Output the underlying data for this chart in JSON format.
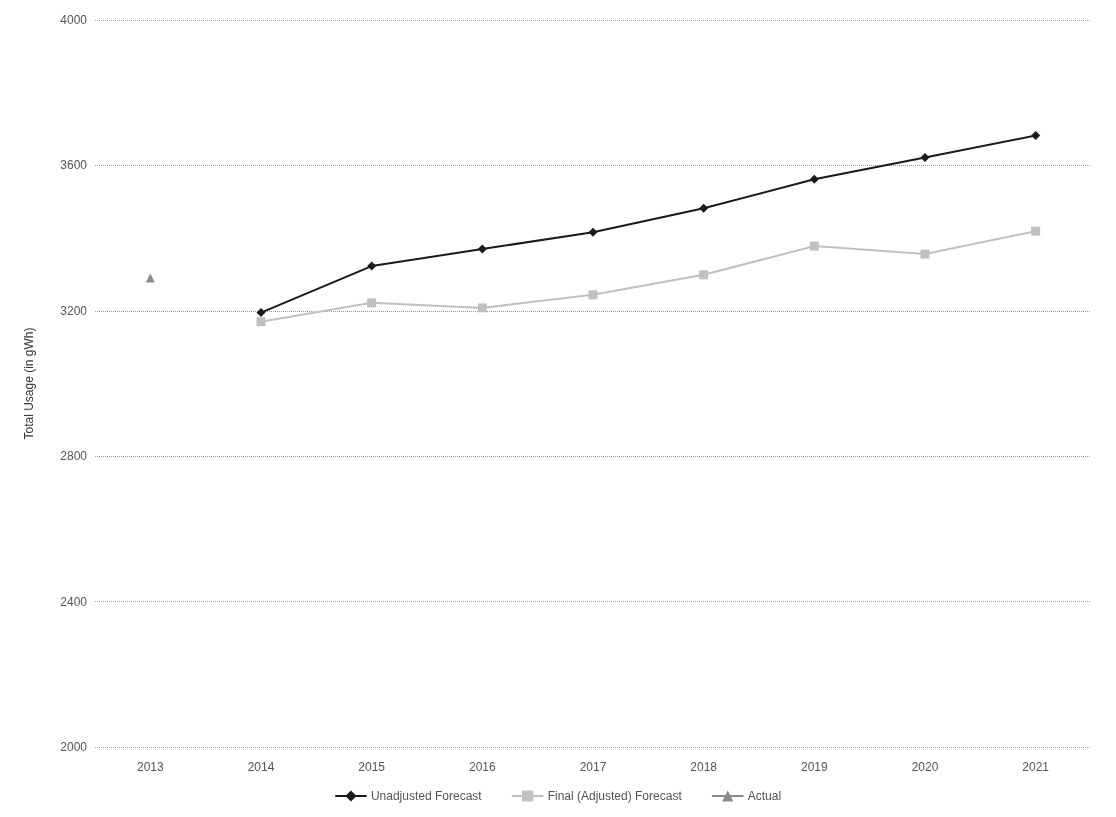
{
  "chart_data": {
    "type": "line",
    "ylabel": "Total Usage (in gWh)",
    "categories": [
      "2013",
      "2014",
      "2015",
      "2016",
      "2017",
      "2018",
      "2019",
      "2020",
      "2021"
    ],
    "series": [
      {
        "name": "Unadjusted Forecast",
        "color": "#1a1a1a",
        "marker": "diamond",
        "values": [
          null,
          3195,
          3323,
          3370,
          3416,
          3482,
          3562,
          3622,
          3682
        ]
      },
      {
        "name": "Final (Adjusted) Forecast",
        "color": "#c0c0c0",
        "marker": "square",
        "values": [
          null,
          3170,
          3222,
          3208,
          3244,
          3299,
          3378,
          3356,
          3419
        ]
      },
      {
        "name": "Actual",
        "color": "#8a8a8a",
        "marker": "triangle",
        "values": [
          3290,
          null,
          null,
          null,
          null,
          null,
          null,
          null,
          null
        ]
      }
    ],
    "ylim": [
      2000,
      4000
    ],
    "yticks": [
      2000,
      2400,
      2800,
      3200,
      3600,
      4000
    ],
    "grid": "y",
    "legend": "bottom",
    "line_style": "solid"
  }
}
